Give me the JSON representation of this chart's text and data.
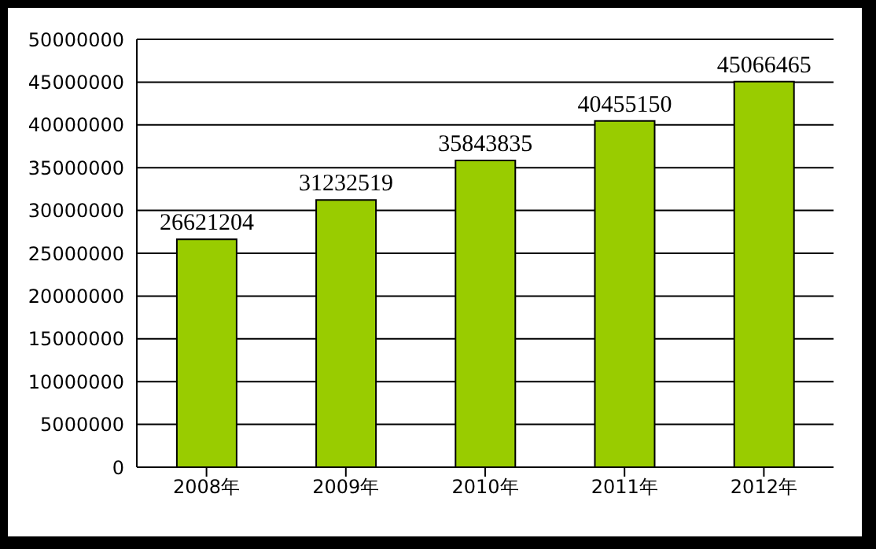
{
  "chart_data": {
    "type": "bar",
    "categories": [
      "2008年",
      "2009年",
      "2010年",
      "2011年",
      "2012年"
    ],
    "values": [
      26621204,
      31232519,
      35843835,
      40455150,
      45066465
    ],
    "color": "#99cc00",
    "ylim": [
      0,
      50000000
    ],
    "yticks": [
      0,
      5000000,
      10000000,
      15000000,
      20000000,
      25000000,
      30000000,
      35000000,
      40000000,
      45000000,
      50000000
    ],
    "grid": "y",
    "data_labels": true
  }
}
